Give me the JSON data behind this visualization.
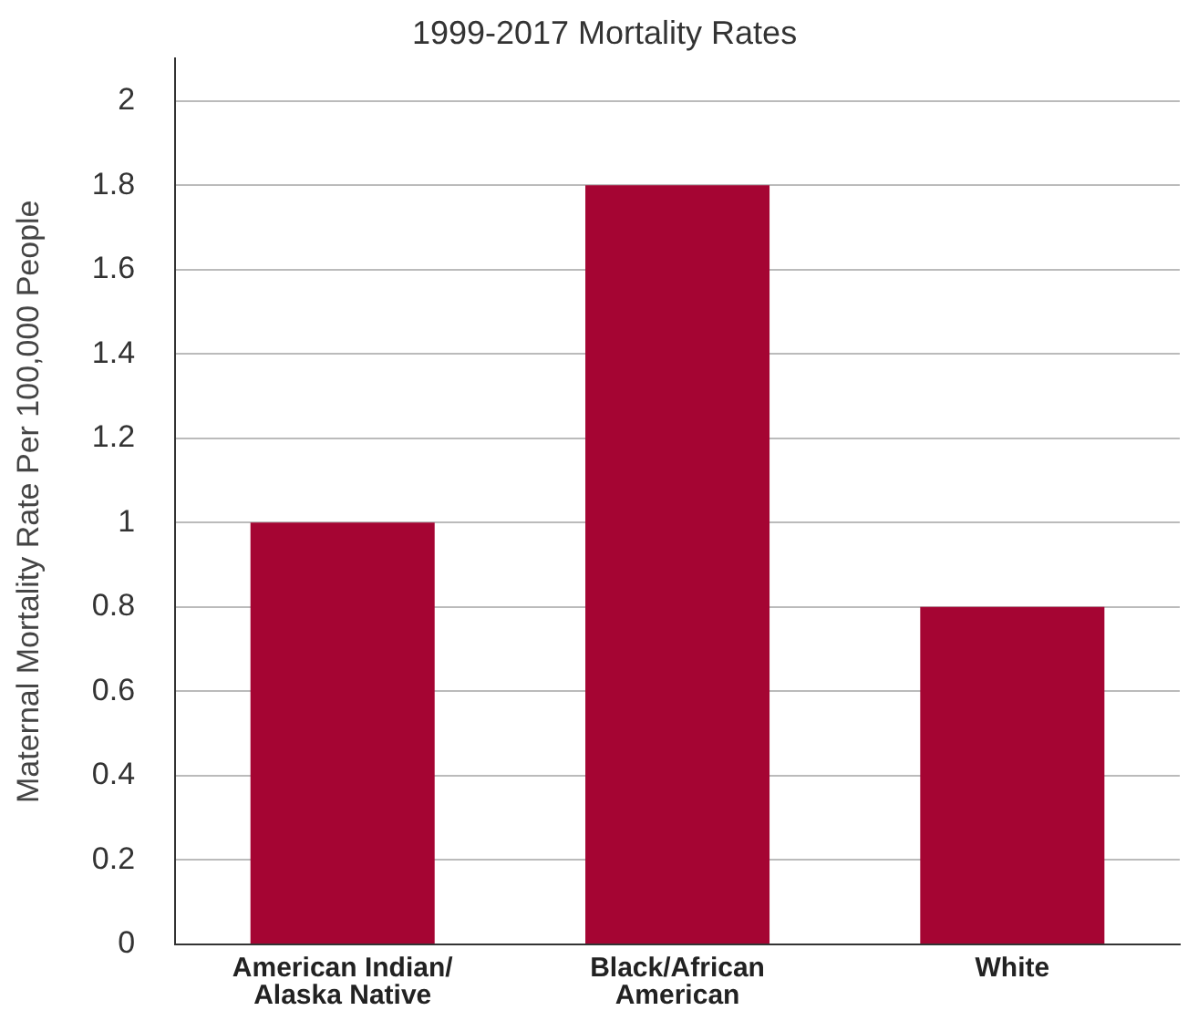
{
  "chart_data": {
    "type": "bar",
    "title": "1999-2017 Mortality Rates",
    "ylabel": "Maternal Mortality Rate Per 100,000 People",
    "categories": [
      "American Indian/ Alaska Native",
      "Black/African American",
      "White"
    ],
    "values": [
      1.0,
      1.8,
      0.8
    ],
    "color": "#a50533",
    "ylim": [
      0,
      2.1
    ],
    "yticks": [
      0,
      0.2,
      0.4,
      0.6,
      0.8,
      1,
      1.2,
      1.4,
      1.6,
      1.8,
      2
    ],
    "grid": "y",
    "legend": false
  }
}
